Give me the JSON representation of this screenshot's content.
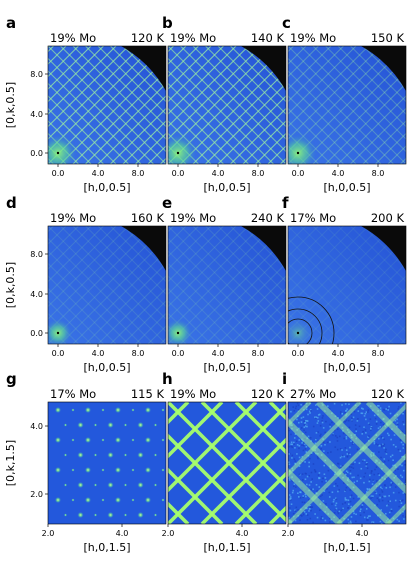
{
  "figure": {
    "rows": [
      {
        "y_axis_label": "[0,k,0.5]",
        "x_axis_label": "[h,0,0.5]",
        "x_ticks": [
          "0.0",
          "4.0",
          "8.0"
        ],
        "y_ticks": [
          "0.0",
          "4.0",
          "8.0"
        ],
        "panels": [
          {
            "letter": "a",
            "composition": "19% Mo",
            "temperature": "120 K",
            "pattern": "dense-grid"
          },
          {
            "letter": "b",
            "composition": "19% Mo",
            "temperature": "140 K",
            "pattern": "dense-grid"
          },
          {
            "letter": "c",
            "composition": "19% Mo",
            "temperature": "150 K",
            "pattern": "faint-grid"
          }
        ]
      },
      {
        "y_axis_label": "[0,k,0.5]",
        "x_axis_label": "[h,0,0.5]",
        "x_ticks": [
          "0.0",
          "4.0",
          "8.0"
        ],
        "y_ticks": [
          "0.0",
          "4.0",
          "8.0"
        ],
        "panels": [
          {
            "letter": "d",
            "composition": "19% Mo",
            "temperature": "160 K",
            "pattern": "very-faint-grid"
          },
          {
            "letter": "e",
            "composition": "19% Mo",
            "temperature": "240 K",
            "pattern": "very-faint-grid"
          },
          {
            "letter": "f",
            "composition": "17% Mo",
            "temperature": "200 K",
            "pattern": "rings"
          }
        ]
      },
      {
        "y_axis_label": "[0,k,1.5]",
        "x_axis_label": "[h,0,1.5]",
        "x_ticks": [
          "2.0",
          "4.0"
        ],
        "y_ticks": [
          "2.0",
          "4.0"
        ],
        "panels": [
          {
            "letter": "g",
            "composition": "17% Mo",
            "temperature": "115 K",
            "pattern": "peaks"
          },
          {
            "letter": "h",
            "composition": "19% Mo",
            "temperature": "120 K",
            "pattern": "thick-lines"
          },
          {
            "letter": "i",
            "composition": "27% Mo",
            "temperature": "120 K",
            "pattern": "noisy-lines"
          }
        ]
      }
    ],
    "colors": {
      "background_map": "#2a5fe0",
      "dark_corner": "#0a0a0a",
      "line_green": "#9df0a0",
      "bright_green": "#a8ff6a",
      "spot_green": "#63e28a"
    }
  }
}
